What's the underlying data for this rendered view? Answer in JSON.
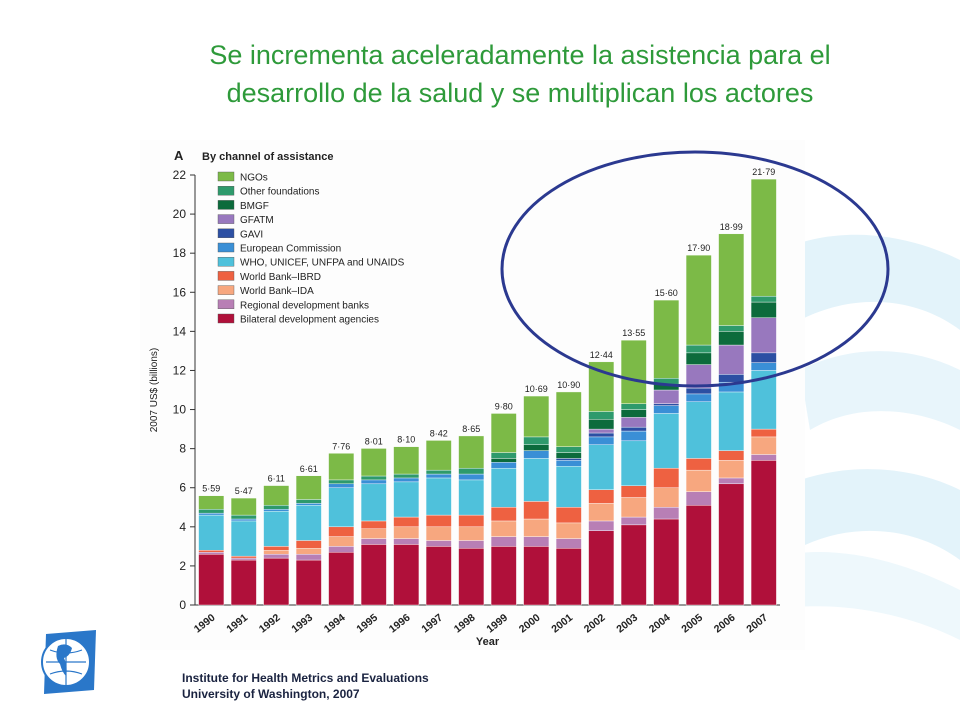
{
  "title": {
    "line1": "Se incrementa aceleradamente la asistencia para el",
    "line2": "desarrollo de la salud y se multiplican los actores"
  },
  "footer": {
    "line1": "Institute for Health Metrics and Evaluations",
    "line2": "University of Washington, 2007"
  },
  "colors": {
    "title": "#2e9a3a",
    "highlight_ellipse": "#2b3990"
  },
  "chart_data": {
    "type": "bar",
    "stacked": true,
    "panel_letter": "A",
    "title": "By channel of assistance",
    "xlabel": "Year",
    "ylabel": "2007 US$ (billions)",
    "ylim": [
      0,
      22
    ],
    "yticks": [
      0,
      2,
      4,
      6,
      8,
      10,
      12,
      14,
      16,
      18,
      20,
      22
    ],
    "grid": false,
    "legend_position": "top-left",
    "categories": [
      "1990",
      "1991",
      "1992",
      "1993",
      "1994",
      "1995",
      "1996",
      "1997",
      "1998",
      "1999",
      "2000",
      "2001",
      "2002",
      "2003",
      "2004",
      "2005",
      "2006",
      "2007"
    ],
    "totals": [
      5.59,
      5.47,
      6.11,
      6.61,
      7.76,
      8.01,
      8.1,
      8.42,
      8.65,
      9.8,
      10.69,
      10.9,
      12.44,
      13.55,
      15.6,
      17.9,
      18.99,
      21.79
    ],
    "total_labels": [
      "5·59",
      "5·47",
      "6·11",
      "6·61",
      "7·76",
      "8·01",
      "8·10",
      "8·42",
      "8·65",
      "9·80",
      "10·69",
      "10·90",
      "12·44",
      "13·55",
      "15·60",
      "17·90",
      "18·99",
      "21·79"
    ],
    "series": [
      {
        "name": "Bilateral development agencies",
        "color": "#b0103a",
        "values": [
          2.6,
          2.3,
          2.4,
          2.3,
          2.7,
          3.1,
          3.1,
          3.0,
          2.9,
          3.0,
          3.0,
          2.9,
          3.8,
          4.1,
          4.4,
          5.1,
          6.2,
          7.4
        ]
      },
      {
        "name": "Regional development banks",
        "color": "#b87fb5",
        "values": [
          0.1,
          0.1,
          0.2,
          0.3,
          0.3,
          0.3,
          0.3,
          0.3,
          0.4,
          0.5,
          0.5,
          0.5,
          0.5,
          0.4,
          0.6,
          0.7,
          0.3,
          0.3
        ]
      },
      {
        "name": "World Bank–IDA",
        "color": "#f7a77f",
        "values": [
          0.0,
          0.0,
          0.2,
          0.3,
          0.5,
          0.5,
          0.6,
          0.7,
          0.7,
          0.8,
          0.9,
          0.8,
          0.9,
          1.0,
          1.0,
          1.1,
          0.9,
          0.9
        ]
      },
      {
        "name": "World Bank–IBRD",
        "color": "#ee6141",
        "values": [
          0.1,
          0.1,
          0.2,
          0.4,
          0.5,
          0.4,
          0.5,
          0.6,
          0.6,
          0.7,
          0.9,
          0.8,
          0.7,
          0.6,
          1.0,
          0.6,
          0.5,
          0.4
        ]
      },
      {
        "name": "WHO, UNICEF, UNFPA and UNAIDS",
        "color": "#4fc1db",
        "values": [
          1.8,
          1.8,
          1.8,
          1.8,
          2.0,
          1.9,
          1.8,
          1.9,
          1.8,
          2.0,
          2.2,
          2.1,
          2.3,
          2.3,
          2.8,
          2.9,
          3.0,
          3.0
        ]
      },
      {
        "name": "European Commission",
        "color": "#3a8fd6",
        "values": [
          0.1,
          0.1,
          0.1,
          0.1,
          0.2,
          0.2,
          0.2,
          0.2,
          0.3,
          0.3,
          0.4,
          0.3,
          0.4,
          0.5,
          0.4,
          0.4,
          0.5,
          0.4
        ]
      },
      {
        "name": "GAVI",
        "color": "#2c4fa3",
        "values": [
          0.0,
          0.0,
          0.0,
          0.0,
          0.0,
          0.0,
          0.0,
          0.0,
          0.0,
          0.0,
          0.0,
          0.1,
          0.2,
          0.2,
          0.1,
          0.3,
          0.4,
          0.5
        ]
      },
      {
        "name": "GFATM",
        "color": "#9878be",
        "values": [
          0.0,
          0.0,
          0.0,
          0.0,
          0.0,
          0.0,
          0.0,
          0.0,
          0.0,
          0.0,
          0.0,
          0.0,
          0.2,
          0.5,
          0.7,
          1.2,
          1.5,
          1.8
        ]
      },
      {
        "name": "BMGF",
        "color": "#0c6b3c",
        "values": [
          0.0,
          0.0,
          0.0,
          0.0,
          0.0,
          0.0,
          0.0,
          0.0,
          0.0,
          0.2,
          0.3,
          0.3,
          0.5,
          0.4,
          0.3,
          0.6,
          0.7,
          0.8
        ]
      },
      {
        "name": "Other foundations",
        "color": "#2e9a6c",
        "values": [
          0.2,
          0.2,
          0.2,
          0.2,
          0.2,
          0.2,
          0.2,
          0.2,
          0.3,
          0.3,
          0.4,
          0.3,
          0.4,
          0.3,
          0.3,
          0.4,
          0.3,
          0.3
        ]
      },
      {
        "name": "NGOs",
        "color": "#7cba47",
        "values": [
          0.69,
          0.87,
          1.01,
          1.21,
          1.36,
          1.41,
          1.4,
          1.52,
          1.65,
          2.0,
          2.09,
          2.8,
          2.54,
          3.25,
          4.0,
          4.6,
          4.69,
          5.99
        ]
      }
    ]
  }
}
